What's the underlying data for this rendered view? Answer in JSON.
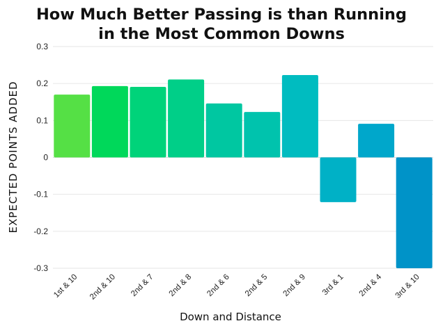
{
  "chart_data": {
    "type": "bar",
    "title_lines": [
      "How Much Better Passing is than Running",
      "in the Most Common Downs"
    ],
    "xlabel": "Down and Distance",
    "ylabel": "EXPECTED POINTS ADDED",
    "ylim": [
      -0.3,
      0.3
    ],
    "yticks": [
      0.3,
      0.2,
      0.1,
      0,
      -0.1,
      -0.2,
      -0.3
    ],
    "ytick_labels": [
      "0.3",
      "0.2",
      "0.1",
      "0",
      "-0.1",
      "-0.2",
      "-0.3"
    ],
    "grid": true,
    "categories": [
      "1st & 10",
      "2nd & 10",
      "2nd & 7",
      "2nd & 8",
      "2nd & 6",
      "2nd & 5",
      "2nd & 9",
      "3rd & 1",
      "2nd & 4",
      "3rd & 10"
    ],
    "values": [
      0.17,
      0.193,
      0.191,
      0.211,
      0.146,
      0.123,
      0.223,
      -0.121,
      0.091,
      -0.3
    ],
    "colors": [
      "#55e045",
      "#00d85a",
      "#00d37a",
      "#00cf88",
      "#00c7a1",
      "#00c3ad",
      "#00bcc0",
      "#00b1c6",
      "#00a7cb",
      "#0093c8"
    ]
  }
}
